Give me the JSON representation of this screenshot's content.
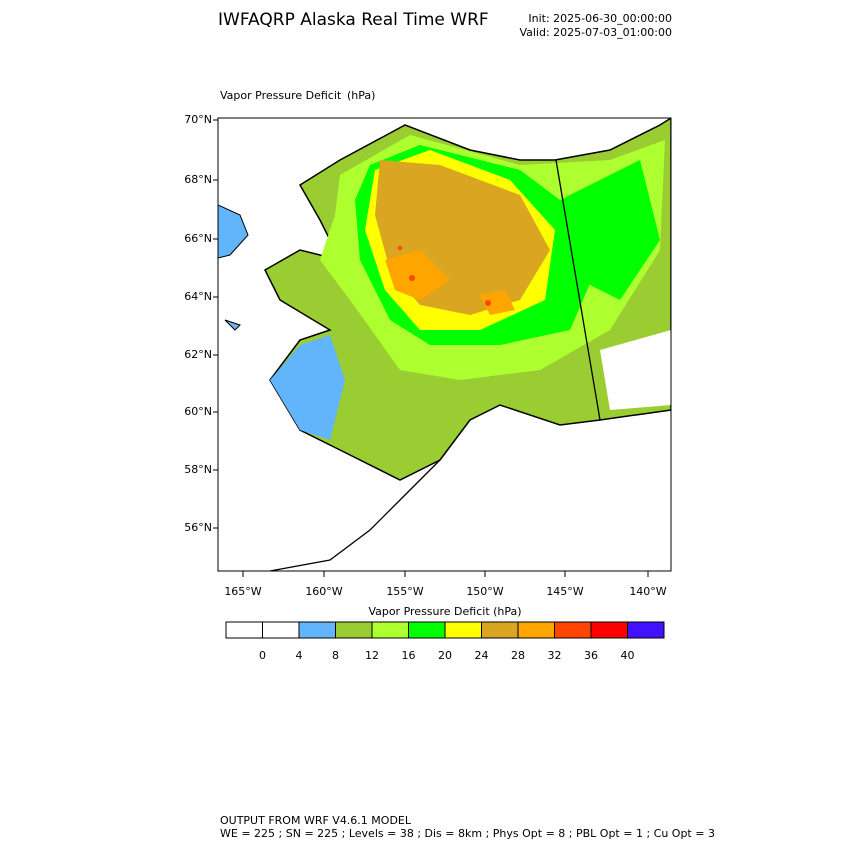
{
  "header": {
    "title": "IWFAQRP Alaska Real Time WRF",
    "init": "Init: 2025-06-30_00:00:00",
    "valid": "Valid: 2025-07-03_01:00:00"
  },
  "map": {
    "field_label": "Vapor Pressure Deficit",
    "units": "(hPa)",
    "lat_labels": [
      "70°N",
      "68°N",
      "66°N",
      "64°N",
      "62°N",
      "60°N",
      "58°N",
      "56°N"
    ],
    "lon_labels": [
      "165°W",
      "160°W",
      "155°W",
      "150°W",
      "145°W",
      "140°W"
    ]
  },
  "colorbar": {
    "title": "Vapor Pressure Deficit  (hPa)",
    "colors": [
      "#ffffff",
      "#ffffff",
      "#63b5fb",
      "#9acd32",
      "#adff2f",
      "#00ff00",
      "#ffff00",
      "#daa520",
      "#ffa500",
      "#ff4500",
      "#ff0000",
      "#4112ff"
    ],
    "levels": [
      0,
      4,
      8,
      12,
      16,
      20,
      24,
      28,
      32,
      36,
      40
    ]
  },
  "footer": {
    "line1": "OUTPUT FROM WRF V4.6.1 MODEL",
    "line2": "WE = 225 ; SN = 225 ; Levels = 38 ; Dis = 8km ; Phys Opt = 8 ; PBL Opt = 1 ; Cu Opt = 3"
  }
}
